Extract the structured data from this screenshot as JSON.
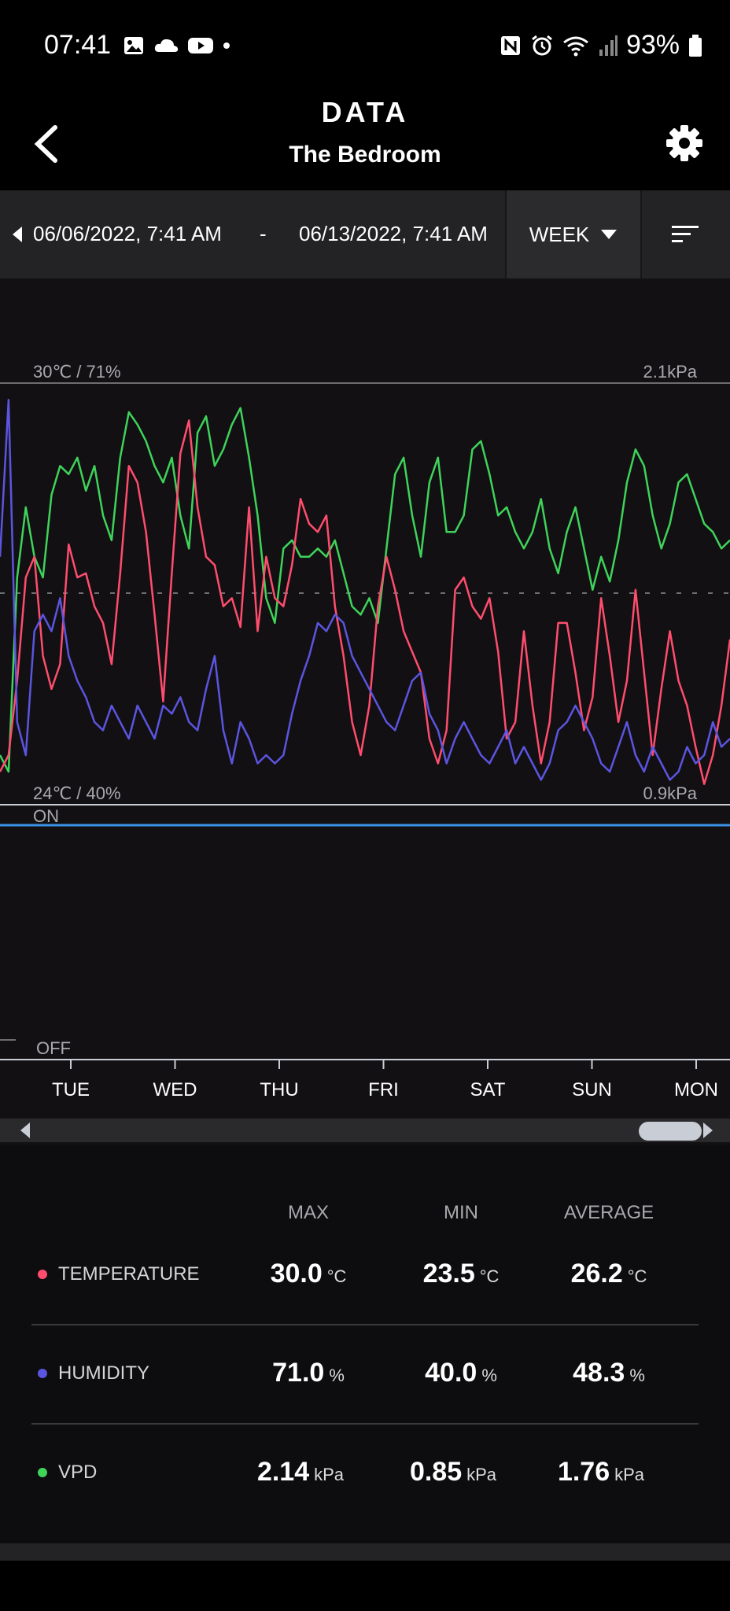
{
  "status_bar": {
    "time": "07:41",
    "battery": "93%",
    "left_icons": [
      "gallery-icon",
      "cloud-icon",
      "youtube-icon",
      "dot-icon"
    ],
    "right_icons": [
      "nfc-icon",
      "alarm-icon",
      "wifi-icon",
      "signal-icon",
      "battery-icon"
    ]
  },
  "header": {
    "title": "DATA",
    "subtitle": "The Bedroom",
    "back_icon": "back-arrow-icon",
    "settings_icon": "gear-icon"
  },
  "range": {
    "start": "06/06/2022, 7:41 AM",
    "separator": "-",
    "end": "06/13/2022, 7:41 AM",
    "period": "WEEK",
    "sort_icon": "sort-icon"
  },
  "chart": {
    "top_left_label": "30℃ / 71%",
    "top_right_label": "2.1kPa",
    "bottom_left_label": "24℃ / 40%",
    "bottom_right_label": "0.9kPa",
    "on_label": "ON",
    "off_label": "OFF",
    "days": [
      "TUE",
      "WED",
      "THU",
      "FRI",
      "SAT",
      "SUN",
      "MON"
    ]
  },
  "chart_data": {
    "type": "line",
    "x_labels": [
      "TUE",
      "WED",
      "THU",
      "FRI",
      "SAT",
      "SUN",
      "MON"
    ],
    "y_left_range": [
      "24℃ / 40%",
      "30℃ / 71%"
    ],
    "y_right_range": [
      0.9,
      2.1
    ],
    "colors": {
      "temperature": "#ff4d6d",
      "humidity": "#5b55e0",
      "vpd": "#3fd35a"
    },
    "series": [
      {
        "name": "TEMPERATURE",
        "color": "#ff4d6d",
        "values": [
          0.08,
          0.12,
          0.3,
          0.55,
          0.6,
          0.36,
          0.28,
          0.34,
          0.63,
          0.55,
          0.56,
          0.48,
          0.44,
          0.34,
          0.56,
          0.82,
          0.78,
          0.66,
          0.46,
          0.25,
          0.56,
          0.85,
          0.93,
          0.72,
          0.6,
          0.58,
          0.48,
          0.5,
          0.43,
          0.72,
          0.42,
          0.6,
          0.5,
          0.48,
          0.58,
          0.74,
          0.68,
          0.66,
          0.7,
          0.48,
          0.36,
          0.2,
          0.12,
          0.24,
          0.48,
          0.6,
          0.52,
          0.42,
          0.37,
          0.32,
          0.16,
          0.1,
          0.18,
          0.52,
          0.55,
          0.48,
          0.45,
          0.5,
          0.37,
          0.16,
          0.2,
          0.42,
          0.24,
          0.1,
          0.2,
          0.44,
          0.44,
          0.32,
          0.18,
          0.26,
          0.5,
          0.36,
          0.2,
          0.3,
          0.52,
          0.32,
          0.12,
          0.28,
          0.42,
          0.3,
          0.24,
          0.14,
          0.05,
          0.12,
          0.24,
          0.4
        ]
      },
      {
        "name": "HUMIDITY",
        "color": "#5b55e0",
        "values": [
          0.6,
          0.98,
          0.2,
          0.12,
          0.42,
          0.46,
          0.42,
          0.5,
          0.36,
          0.3,
          0.26,
          0.2,
          0.18,
          0.24,
          0.2,
          0.16,
          0.24,
          0.2,
          0.16,
          0.24,
          0.22,
          0.26,
          0.2,
          0.18,
          0.28,
          0.36,
          0.18,
          0.1,
          0.2,
          0.16,
          0.1,
          0.12,
          0.1,
          0.12,
          0.22,
          0.3,
          0.36,
          0.44,
          0.42,
          0.46,
          0.44,
          0.36,
          0.32,
          0.28,
          0.24,
          0.2,
          0.18,
          0.24,
          0.3,
          0.32,
          0.22,
          0.18,
          0.1,
          0.16,
          0.2,
          0.16,
          0.12,
          0.1,
          0.14,
          0.18,
          0.1,
          0.14,
          0.1,
          0.06,
          0.1,
          0.18,
          0.2,
          0.24,
          0.2,
          0.16,
          0.1,
          0.08,
          0.14,
          0.2,
          0.12,
          0.08,
          0.14,
          0.1,
          0.06,
          0.08,
          0.14,
          0.1,
          0.12,
          0.2,
          0.14,
          0.16
        ]
      },
      {
        "name": "VPD",
        "color": "#3fd35a",
        "values": [
          0.12,
          0.08,
          0.55,
          0.72,
          0.6,
          0.55,
          0.75,
          0.82,
          0.8,
          0.84,
          0.76,
          0.82,
          0.7,
          0.64,
          0.84,
          0.95,
          0.92,
          0.88,
          0.82,
          0.78,
          0.84,
          0.7,
          0.62,
          0.9,
          0.94,
          0.82,
          0.86,
          0.92,
          0.96,
          0.84,
          0.7,
          0.5,
          0.44,
          0.62,
          0.64,
          0.6,
          0.6,
          0.62,
          0.6,
          0.64,
          0.56,
          0.48,
          0.46,
          0.5,
          0.44,
          0.62,
          0.8,
          0.84,
          0.7,
          0.6,
          0.78,
          0.84,
          0.66,
          0.66,
          0.7,
          0.86,
          0.88,
          0.8,
          0.7,
          0.72,
          0.66,
          0.62,
          0.66,
          0.74,
          0.62,
          0.56,
          0.66,
          0.72,
          0.62,
          0.52,
          0.6,
          0.54,
          0.64,
          0.78,
          0.86,
          0.82,
          0.7,
          0.62,
          0.68,
          0.78,
          0.8,
          0.74,
          0.68,
          0.66,
          0.62,
          0.64
        ]
      }
    ],
    "on_off_series": {
      "name": "ON",
      "values": [
        1,
        1,
        1,
        1,
        1,
        1,
        1
      ]
    },
    "legend_position": "below"
  },
  "stats": {
    "headers": [
      "MAX",
      "MIN",
      "AVERAGE"
    ],
    "rows": [
      {
        "name": "TEMPERATURE",
        "color": "#ff4d6d",
        "max": "30.0",
        "min": "23.5",
        "avg": "26.2",
        "unit": "°C"
      },
      {
        "name": "HUMIDITY",
        "color": "#5b55e0",
        "max": "71.0",
        "min": "40.0",
        "avg": "48.3",
        "unit": "%"
      },
      {
        "name": "VPD",
        "color": "#3fd35a",
        "max": "2.14",
        "min": "0.85",
        "avg": "1.76",
        "unit": "kPa"
      }
    ]
  }
}
